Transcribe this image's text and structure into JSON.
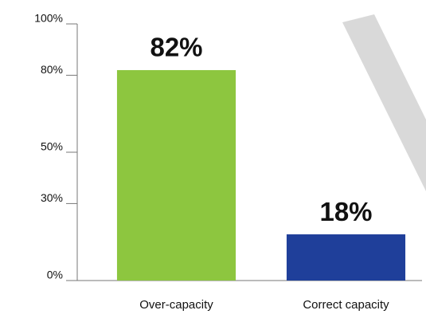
{
  "chart_data": {
    "type": "bar",
    "categories": [
      "Over-capacity",
      "Correct capacity"
    ],
    "values": [
      82,
      18
    ],
    "value_labels": [
      "82%",
      "18%"
    ],
    "colors": [
      "#8dc63f",
      "#1f3f9a"
    ],
    "ylim": [
      0,
      100
    ],
    "yticks": [
      {
        "value": 0,
        "label": "0%"
      },
      {
        "value": 30,
        "label": "30%"
      },
      {
        "value": 50,
        "label": "50%"
      },
      {
        "value": 80,
        "label": "80%"
      },
      {
        "value": 100,
        "label": "100%"
      }
    ]
  }
}
